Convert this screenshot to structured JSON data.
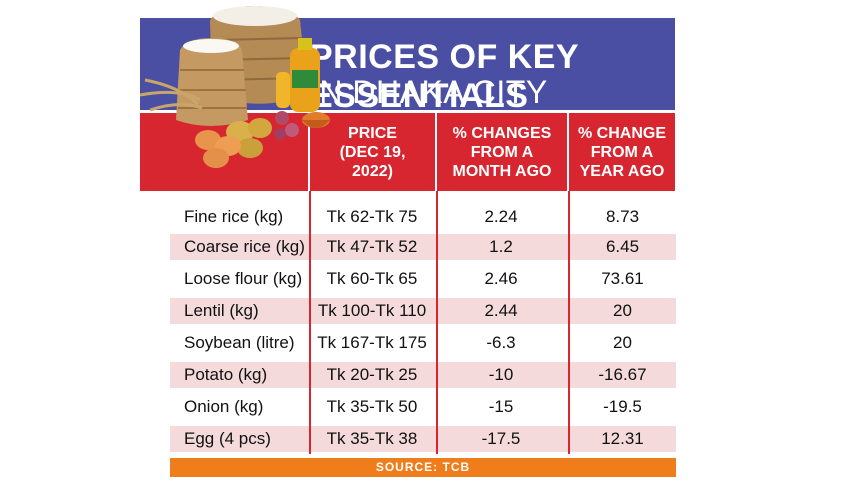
{
  "title": {
    "line1": "PRICES OF KEY ESSENTIALS",
    "line2": "IN DHAKA CITY"
  },
  "columns": [
    "PRICE\n(DEC 19,\n2022)",
    "% CHANGES\nFROM A\nMONTH AGO",
    "% CHANGE\nFROM A\nYEAR AGO"
  ],
  "rows": [
    {
      "item": "Fine rice (kg)",
      "price": "Tk 62-Tk 75",
      "month": "2.24",
      "year": "8.73"
    },
    {
      "item": "Coarse rice (kg)",
      "price": "Tk 47-Tk 52",
      "month": "1.2",
      "year": "6.45"
    },
    {
      "item": "Loose flour (kg)",
      "price": "Tk 60-Tk 65",
      "month": "2.46",
      "year": "73.61"
    },
    {
      "item": "Lentil (kg)",
      "price": "Tk 100-Tk 110",
      "month": "2.44",
      "year": "20"
    },
    {
      "item": "Soybean (litre)",
      "price": "Tk 167-Tk 175",
      "month": "-6.3",
      "year": "20"
    },
    {
      "item": "Potato (kg)",
      "price": "Tk 20-Tk 25",
      "month": "-10",
      "year": "-16.67"
    },
    {
      "item": "Onion (kg)",
      "price": "Tk 35-Tk 50",
      "month": "-15",
      "year": "-19.5"
    },
    {
      "item": "Egg (4 pcs)",
      "price": "Tk 35-Tk 38",
      "month": "-17.5",
      "year": "12.31"
    }
  ],
  "source": "SOURCE: TCB",
  "colors": {
    "title_bg": "#4a4fa3",
    "header_bg": "#d7262f",
    "row_shade": "#f4dada",
    "source_bg": "#f07d1c"
  },
  "illustration": "groceries-illustration"
}
